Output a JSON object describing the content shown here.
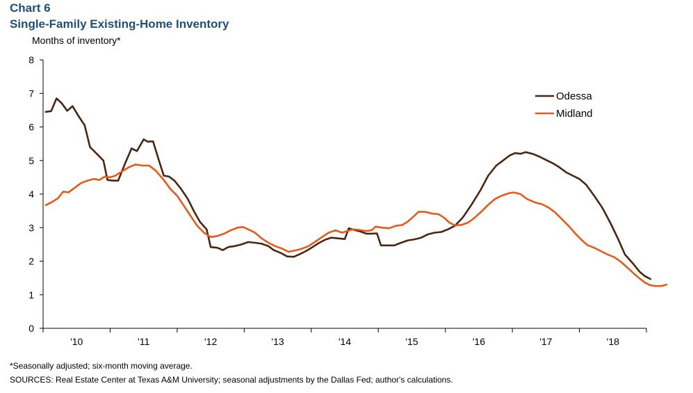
{
  "header": {
    "chart_number": "Chart 6",
    "title": "Single-Family Existing-Home Inventory"
  },
  "footer": {
    "note": "*Seasonally adjusted; six-month moving average.",
    "sources": "SOURCES: Real Estate Center at Texas A&M University; seasonal adjustments by the Dallas Fed; author's calculations."
  },
  "chart_data": {
    "type": "line",
    "title": "Single-Family Existing-Home Inventory",
    "ylabel": "Months of inventory*",
    "xlabel": "",
    "ylim": [
      0,
      8
    ],
    "yticks": [
      0,
      1,
      2,
      3,
      4,
      5,
      6,
      7,
      8
    ],
    "xlim": [
      2010.0,
      2019.0
    ],
    "xtick_labels": [
      {
        "label": "'10",
        "x": 2010.5
      },
      {
        "label": "'11",
        "x": 2011.5
      },
      {
        "label": "'12",
        "x": 2012.5
      },
      {
        "label": "'13",
        "x": 2013.5
      },
      {
        "label": "'14",
        "x": 2014.5
      },
      {
        "label": "'15",
        "x": 2015.5
      },
      {
        "label": "'16",
        "x": 2016.5
      },
      {
        "label": "'17",
        "x": 2017.5
      },
      {
        "label": "'18",
        "x": 2018.5
      }
    ],
    "grid": false,
    "legend": "top-right",
    "series": [
      {
        "name": "Odessa",
        "color": "#4a2511",
        "points": [
          [
            2010.04,
            6.45
          ],
          [
            2010.12,
            6.47
          ],
          [
            2010.2,
            6.85
          ],
          [
            2010.28,
            6.7
          ],
          [
            2010.36,
            6.48
          ],
          [
            2010.44,
            6.62
          ],
          [
            2010.52,
            6.35
          ],
          [
            2010.62,
            6.05
          ],
          [
            2010.7,
            5.4
          ],
          [
            2010.8,
            5.2
          ],
          [
            2010.9,
            5.0
          ],
          [
            2010.96,
            4.42
          ],
          [
            2011.04,
            4.4
          ],
          [
            2011.12,
            4.4
          ],
          [
            2011.22,
            4.9
          ],
          [
            2011.32,
            5.36
          ],
          [
            2011.4,
            5.28
          ],
          [
            2011.5,
            5.63
          ],
          [
            2011.56,
            5.56
          ],
          [
            2011.64,
            5.57
          ],
          [
            2011.72,
            5.05
          ],
          [
            2011.8,
            4.55
          ],
          [
            2011.88,
            4.52
          ],
          [
            2011.96,
            4.4
          ],
          [
            2012.06,
            4.15
          ],
          [
            2012.16,
            3.85
          ],
          [
            2012.26,
            3.45
          ],
          [
            2012.34,
            3.17
          ],
          [
            2012.44,
            2.95
          ],
          [
            2012.5,
            2.42
          ],
          [
            2012.6,
            2.4
          ],
          [
            2012.68,
            2.33
          ],
          [
            2012.76,
            2.42
          ],
          [
            2012.86,
            2.45
          ],
          [
            2012.96,
            2.5
          ],
          [
            2013.06,
            2.57
          ],
          [
            2013.16,
            2.55
          ],
          [
            2013.26,
            2.52
          ],
          [
            2013.36,
            2.45
          ],
          [
            2013.44,
            2.33
          ],
          [
            2013.54,
            2.25
          ],
          [
            2013.64,
            2.14
          ],
          [
            2013.74,
            2.13
          ],
          [
            2013.84,
            2.22
          ],
          [
            2013.92,
            2.3
          ],
          [
            2014.02,
            2.42
          ],
          [
            2014.12,
            2.55
          ],
          [
            2014.22,
            2.65
          ],
          [
            2014.3,
            2.7
          ],
          [
            2014.4,
            2.68
          ],
          [
            2014.5,
            2.66
          ],
          [
            2014.56,
            2.98
          ],
          [
            2014.66,
            2.92
          ],
          [
            2014.74,
            2.88
          ],
          [
            2014.82,
            2.82
          ],
          [
            2014.9,
            2.82
          ],
          [
            2014.98,
            2.83
          ],
          [
            2015.04,
            2.47
          ],
          [
            2015.14,
            2.47
          ],
          [
            2015.24,
            2.47
          ],
          [
            2015.34,
            2.55
          ],
          [
            2015.44,
            2.62
          ],
          [
            2015.54,
            2.65
          ],
          [
            2015.64,
            2.7
          ],
          [
            2015.74,
            2.8
          ],
          [
            2015.84,
            2.85
          ],
          [
            2015.94,
            2.87
          ],
          [
            2016.04,
            2.95
          ],
          [
            2016.14,
            3.05
          ],
          [
            2016.26,
            3.3
          ],
          [
            2016.38,
            3.65
          ],
          [
            2016.52,
            4.1
          ],
          [
            2016.64,
            4.55
          ],
          [
            2016.76,
            4.85
          ],
          [
            2016.86,
            5.0
          ],
          [
            2016.96,
            5.15
          ],
          [
            2017.04,
            5.22
          ],
          [
            2017.12,
            5.2
          ],
          [
            2017.2,
            5.25
          ],
          [
            2017.3,
            5.2
          ],
          [
            2017.4,
            5.12
          ],
          [
            2017.5,
            5.02
          ],
          [
            2017.62,
            4.9
          ],
          [
            2017.7,
            4.8
          ],
          [
            2017.8,
            4.65
          ],
          [
            2017.9,
            4.55
          ],
          [
            2018.0,
            4.45
          ],
          [
            2018.1,
            4.28
          ],
          [
            2018.22,
            3.95
          ],
          [
            2018.34,
            3.6
          ],
          [
            2018.46,
            3.15
          ],
          [
            2018.58,
            2.65
          ],
          [
            2018.68,
            2.2
          ],
          [
            2018.8,
            1.93
          ],
          [
            2018.9,
            1.68
          ],
          [
            2018.98,
            1.55
          ],
          [
            2019.06,
            1.47
          ]
        ]
      },
      {
        "name": "Midland",
        "color": "#e35a1a",
        "points": [
          [
            2010.04,
            3.67
          ],
          [
            2010.12,
            3.75
          ],
          [
            2010.22,
            3.87
          ],
          [
            2010.3,
            4.07
          ],
          [
            2010.38,
            4.05
          ],
          [
            2010.48,
            4.2
          ],
          [
            2010.56,
            4.32
          ],
          [
            2010.66,
            4.4
          ],
          [
            2010.76,
            4.45
          ],
          [
            2010.84,
            4.42
          ],
          [
            2010.92,
            4.52
          ],
          [
            2011.0,
            4.5
          ],
          [
            2011.08,
            4.55
          ],
          [
            2011.18,
            4.68
          ],
          [
            2011.28,
            4.8
          ],
          [
            2011.38,
            4.88
          ],
          [
            2011.48,
            4.85
          ],
          [
            2011.58,
            4.85
          ],
          [
            2011.68,
            4.7
          ],
          [
            2011.8,
            4.42
          ],
          [
            2011.9,
            4.15
          ],
          [
            2012.0,
            3.95
          ],
          [
            2012.1,
            3.65
          ],
          [
            2012.2,
            3.35
          ],
          [
            2012.3,
            3.05
          ],
          [
            2012.4,
            2.85
          ],
          [
            2012.5,
            2.72
          ],
          [
            2012.6,
            2.75
          ],
          [
            2012.7,
            2.82
          ],
          [
            2012.8,
            2.92
          ],
          [
            2012.9,
            3.0
          ],
          [
            2012.98,
            3.02
          ],
          [
            2013.06,
            2.95
          ],
          [
            2013.16,
            2.85
          ],
          [
            2013.26,
            2.68
          ],
          [
            2013.36,
            2.55
          ],
          [
            2013.46,
            2.45
          ],
          [
            2013.56,
            2.38
          ],
          [
            2013.66,
            2.28
          ],
          [
            2013.76,
            2.32
          ],
          [
            2013.86,
            2.37
          ],
          [
            2013.96,
            2.45
          ],
          [
            2014.06,
            2.58
          ],
          [
            2014.16,
            2.72
          ],
          [
            2014.26,
            2.85
          ],
          [
            2014.36,
            2.92
          ],
          [
            2014.46,
            2.85
          ],
          [
            2014.54,
            2.9
          ],
          [
            2014.62,
            2.95
          ],
          [
            2014.72,
            2.93
          ],
          [
            2014.82,
            2.9
          ],
          [
            2014.9,
            2.92
          ],
          [
            2014.96,
            3.03
          ],
          [
            2015.06,
            3.0
          ],
          [
            2015.16,
            2.98
          ],
          [
            2015.26,
            3.05
          ],
          [
            2015.36,
            3.08
          ],
          [
            2015.44,
            3.18
          ],
          [
            2015.52,
            3.32
          ],
          [
            2015.6,
            3.47
          ],
          [
            2015.7,
            3.47
          ],
          [
            2015.8,
            3.42
          ],
          [
            2015.9,
            3.4
          ],
          [
            2015.98,
            3.3
          ],
          [
            2016.06,
            3.15
          ],
          [
            2016.14,
            3.07
          ],
          [
            2016.24,
            3.08
          ],
          [
            2016.34,
            3.15
          ],
          [
            2016.44,
            3.3
          ],
          [
            2016.54,
            3.48
          ],
          [
            2016.64,
            3.68
          ],
          [
            2016.74,
            3.85
          ],
          [
            2016.84,
            3.95
          ],
          [
            2016.94,
            4.02
          ],
          [
            2017.02,
            4.05
          ],
          [
            2017.12,
            4.0
          ],
          [
            2017.22,
            3.85
          ],
          [
            2017.34,
            3.75
          ],
          [
            2017.44,
            3.7
          ],
          [
            2017.54,
            3.6
          ],
          [
            2017.64,
            3.45
          ],
          [
            2017.74,
            3.25
          ],
          [
            2017.84,
            3.05
          ],
          [
            2017.94,
            2.82
          ],
          [
            2018.04,
            2.62
          ],
          [
            2018.12,
            2.48
          ],
          [
            2018.22,
            2.4
          ],
          [
            2018.32,
            2.3
          ],
          [
            2018.42,
            2.2
          ],
          [
            2018.52,
            2.12
          ],
          [
            2018.62,
            1.98
          ],
          [
            2018.72,
            1.8
          ],
          [
            2018.82,
            1.62
          ],
          [
            2018.9,
            1.48
          ],
          [
            2018.98,
            1.36
          ],
          [
            2019.06,
            1.28
          ],
          [
            2019.14,
            1.26
          ],
          [
            2019.22,
            1.26
          ],
          [
            2019.3,
            1.3
          ]
        ]
      }
    ]
  }
}
